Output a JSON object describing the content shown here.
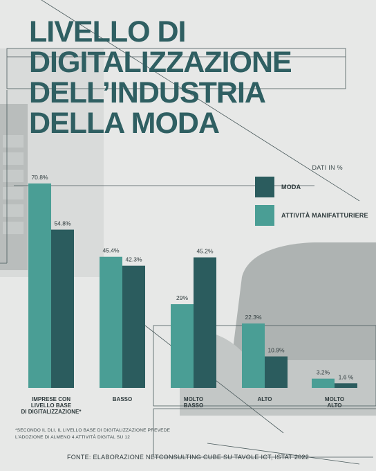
{
  "page": {
    "title_lines": [
      "LIVELLO DI",
      "DIGITALIZZAZIONE",
      "DELL’INDUSTRIA",
      "DELLA MODA"
    ],
    "unit_note": "DATI IN %",
    "footnote": "*SECONDO IL DLI, IL LIVELLO BASE DI DIGITALIZZAZIONE PREVEDE L’ADOZIONE DI ALMENO 4 ATTIVITÀ DIGITAL SU 12",
    "source": "FONTE: ELABORAZIONE NETCONSULTING CUBE SU TAVOLE ICT, ISTAT 2022"
  },
  "colors": {
    "moda": "#2b5c5e",
    "manifatturiere": "#4a9e95",
    "title": "#2f5f62"
  },
  "chart_data": {
    "type": "bar",
    "categories": [
      [
        "IMPRESE CON",
        "LIVELLO BASE",
        "DI DIGITALIZZAZIONE*"
      ],
      [
        "BASSO"
      ],
      [
        "MOLTO",
        "BASSO"
      ],
      [
        "ALTO"
      ],
      [
        "MOLTO",
        "ALTO"
      ]
    ],
    "series": [
      {
        "name": "ATTIVITÀ MANIFATTURIERE",
        "values": [
          70.8,
          45.4,
          29,
          22.3,
          3.2
        ],
        "labels": [
          "70.8%",
          "45.4%",
          "29%",
          "22.3%",
          "3.2%"
        ]
      },
      {
        "name": "MODA",
        "values": [
          54.8,
          42.3,
          45.2,
          10.9,
          1.6
        ],
        "labels": [
          "54.8%",
          "42.3%",
          "45.2%",
          "10.9%",
          "1.6 %"
        ]
      }
    ],
    "legend": [
      {
        "label": "MODA",
        "series": 1
      },
      {
        "label": "ATTIVITÀ MANIFATTURIERE",
        "series": 0
      }
    ],
    "ylim": [
      0,
      80
    ],
    "grid": false,
    "legend_position": "top-right"
  }
}
